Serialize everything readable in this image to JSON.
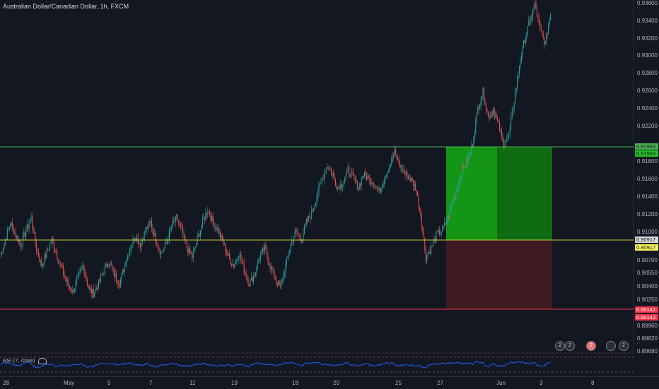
{
  "header": {
    "title": "Australian Dollar/Canadian Dollar, 1h, FXCM"
  },
  "price_axis": {
    "ticks": [
      "0.93600",
      "0.93400",
      "0.93200",
      "0.93000",
      "0.92800",
      "0.92600",
      "0.92400",
      "0.92200",
      "0.91800",
      "0.91600",
      "0.91400",
      "0.91200",
      "0.91000",
      "0.90700",
      "0.90550",
      "0.90400",
      "0.90250",
      "0.89960",
      "0.89820",
      "0.89680"
    ],
    "tags": {
      "target_top": "0.91963",
      "target_bottom": "0.91963",
      "entry_top": "0.90917",
      "entry_bottom": "0.90917",
      "stop_top": "0.90142",
      "stop_bottom": "0.90142"
    }
  },
  "time_axis": {
    "ticks": [
      "28",
      "May",
      "5",
      "7",
      "11",
      "13",
      "18",
      "20",
      "25",
      "27",
      "Jun",
      "3",
      "8"
    ]
  },
  "rsi": {
    "label": "RSI (7, close)"
  },
  "events": {
    "icons": [
      "calendar-event-icon",
      "calendar-event-icon",
      "flag-event-icon",
      "calendar-event-icon",
      "calendar-event-icon"
    ],
    "badges": [
      "2",
      "2",
      "2",
      "",
      "2"
    ]
  },
  "colors": {
    "background": "#131722",
    "up_candle": "#26a69a",
    "down_candle": "#ef5350",
    "target_line": "#4caf50",
    "entry_line": "#c8c83c",
    "stop_line": "#f23645",
    "profit_zone": "#1b8a1b",
    "loss_zone": "#4a1c22",
    "rsi_line": "#2962ff"
  },
  "chart_data": {
    "type": "candlestick",
    "symbol": "AUDCAD",
    "ylim": [
      0.896,
      0.9365
    ],
    "levels": {
      "target": 0.91963,
      "entry": 0.90917,
      "stop": 0.90142
    },
    "close_path": [
      0.907,
      0.909,
      0.911,
      0.9095,
      0.9085,
      0.91,
      0.9115,
      0.908,
      0.906,
      0.9075,
      0.909,
      0.907,
      0.9055,
      0.904,
      0.903,
      0.9045,
      0.906,
      0.9035,
      0.9028,
      0.904,
      0.9055,
      0.9065,
      0.905,
      0.904,
      0.906,
      0.908,
      0.9095,
      0.9085,
      0.91,
      0.911,
      0.909,
      0.9075,
      0.9085,
      0.9105,
      0.9115,
      0.91,
      0.908,
      0.907,
      0.909,
      0.911,
      0.9125,
      0.911,
      0.91,
      0.9085,
      0.907,
      0.906,
      0.9075,
      0.9055,
      0.904,
      0.905,
      0.907,
      0.908,
      0.906,
      0.9045,
      0.9035,
      0.906,
      0.9085,
      0.91,
      0.909,
      0.911,
      0.912,
      0.914,
      0.916,
      0.9175,
      0.9165,
      0.915,
      0.9155,
      0.917,
      0.916,
      0.915,
      0.9165,
      0.916,
      0.9155,
      0.9145,
      0.916,
      0.9175,
      0.919,
      0.9175,
      0.9165,
      0.916,
      0.915,
      0.912,
      0.907,
      0.908,
      0.9095,
      0.91,
      0.911,
      0.913,
      0.915,
      0.917,
      0.918,
      0.92,
      0.924,
      0.926,
      0.923,
      0.924,
      0.922,
      0.92,
      0.921,
      0.925,
      0.929,
      0.932,
      0.934,
      0.936,
      0.933,
      0.9315,
      0.935
    ]
  }
}
